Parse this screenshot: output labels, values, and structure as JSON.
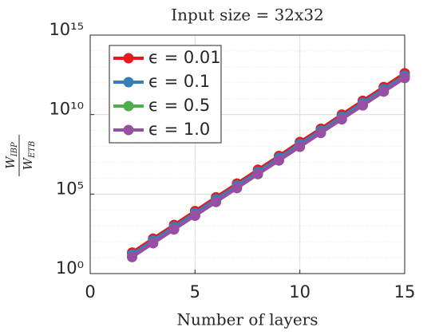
{
  "chart_data": {
    "type": "line",
    "title": "Input size = 32x32",
    "xlabel": "Number of layers",
    "ylabel": [
      "W",
      "IBP",
      "W",
      "ETB"
    ],
    "x": [
      2,
      3,
      4,
      5,
      6,
      7,
      8,
      9,
      10,
      11,
      12,
      13,
      14,
      15
    ],
    "series": [
      {
        "name": "ϵ = 0.01",
        "color": "#e41a1c",
        "values": [
          21,
          160,
          1150,
          8500,
          63000,
          460000,
          3400000,
          25000000,
          190000000,
          1300000000,
          10000000000,
          74000000000,
          540000000000,
          4000000000000
        ]
      },
      {
        "name": "ϵ = 0.1",
        "color": "#377eb8",
        "values": [
          16,
          120,
          870,
          6300,
          47000,
          350000,
          2500000,
          19000000,
          140000000,
          1000000000,
          7400000000,
          55000000000,
          400000000000,
          2800000000000
        ]
      },
      {
        "name": "ϵ = 0.5",
        "color": "#4daf4a",
        "values": [
          11,
          82,
          600,
          4400,
          32000,
          240000,
          1800000,
          13000000,
          95000000,
          700000000,
          5100000000,
          38000000000,
          280000000000,
          2000000000000
        ]
      },
      {
        "name": "ϵ = 1.0",
        "color": "#984ea3",
        "values": [
          11,
          82,
          600,
          4400,
          32000,
          240000,
          1800000,
          13000000,
          95000000,
          700000000,
          5100000000,
          38000000000,
          280000000000,
          2000000000000
        ]
      }
    ],
    "xlim": [
      0,
      15
    ],
    "xticks": [
      0,
      5,
      10,
      15
    ],
    "ylim": [
      1,
      1000000000000000
    ],
    "yticks": [
      {
        "value": 1,
        "label": "10⁰"
      },
      {
        "value": 100000,
        "label": "10⁵"
      },
      {
        "value": 10000000000,
        "label": "10¹⁰"
      },
      {
        "value": 1000000000000000,
        "label": "10¹⁵"
      }
    ],
    "ylog": true,
    "grid": true,
    "legend": "upper left"
  }
}
